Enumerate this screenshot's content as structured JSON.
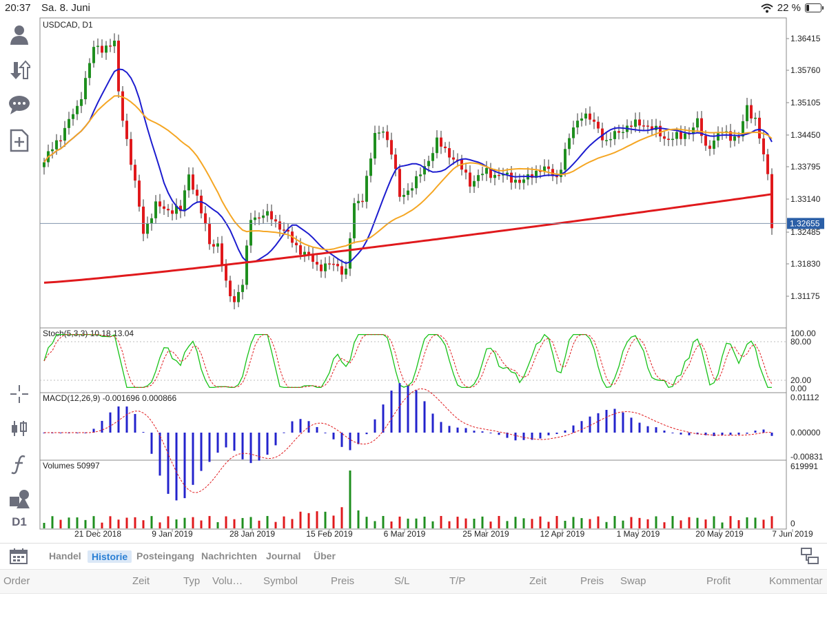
{
  "status": {
    "time": "20:37",
    "date": "Sa. 8. Juni",
    "battery": "22 %",
    "battery_level": 0.22
  },
  "chart": {
    "symbol_label": "USDCAD, D1",
    "last_price": "1.32655",
    "stoch_label": "Stoch(5,3,3) 10.18 13.04",
    "macd_label": "MACD(12,26,9) -0.001696 0.000866",
    "volume_label": "Volumes 50997",
    "price_ticks": [
      "1.36415",
      "1.35760",
      "1.35105",
      "1.34450",
      "1.33795",
      "1.33140",
      "1.32485",
      "1.31830",
      "1.31175"
    ],
    "stoch_ticks": [
      "100.00",
      "80.00",
      "20.00",
      "0.00"
    ],
    "macd_ticks": [
      "0.01112",
      "0.00000",
      "-0.00831"
    ],
    "volume_ticks": [
      "619991",
      "0"
    ],
    "date_labels": [
      "21 Dec 2018",
      "9 Jan 2019",
      "28 Jan 2019",
      "15 Feb 2019",
      "6 Mar 2019",
      "25 Mar 2019",
      "12 Apr 2019",
      "1 May 2019",
      "20 May 2019",
      "7 Jun 2019"
    ],
    "colors": {
      "up": "#1f8f1f",
      "down": "#e0191c",
      "ma_fast": "#1c1ccf",
      "ma_mid": "#f5a623",
      "ma_slow": "#e0191c",
      "stoch_main": "#17c217",
      "macd_bar": "#2323cc"
    }
  },
  "toolbar": {
    "icons": [
      "account-icon",
      "trade-arrows-icon",
      "chat-icon",
      "new-order-icon",
      "crosshair-icon",
      "candles-icon",
      "function-icon",
      "objects-icon"
    ],
    "timeframe": "D1"
  },
  "tabs": [
    "Handel",
    "Historie",
    "Posteingang",
    "Nachrichten",
    "Journal",
    "Über"
  ],
  "active_tab": "Historie",
  "columns": [
    "Order",
    "Zeit",
    "Typ",
    "Volu…",
    "Symbol",
    "Preis",
    "S/L",
    "T/P",
    "Zeit",
    "Preis",
    "Swap",
    "Profit",
    "Kommentar"
  ]
}
